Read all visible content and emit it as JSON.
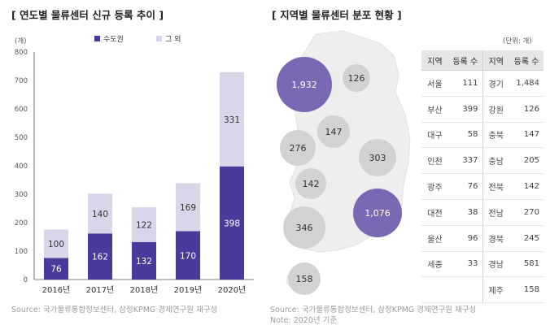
{
  "left_panel": {
    "title": "[ 연도별 물류센터 신규 등록 추이 ]",
    "unit": "(개)",
    "source": "Source: 국가물류통합정보센터, 삼정KPMG 경제연구원 재구성"
  },
  "right_panel": {
    "title": "[ 지역별 물류센터 분포 현황 ]",
    "unit": "(단위: 개)",
    "source": "Source: 국가물류통합정보센터, 삼정KPMG 경제연구원 재구성",
    "note": "Note: 2020년 기준",
    "table": {
      "headers": [
        "지역",
        "등록 수",
        "지역",
        "등록 수"
      ],
      "rows": [
        [
          "서울",
          "111",
          "경기",
          "1,484"
        ],
        [
          "부산",
          "399",
          "강원",
          "126"
        ],
        [
          "대구",
          "58",
          "충북",
          "147"
        ],
        [
          "인천",
          "337",
          "충남",
          "205"
        ],
        [
          "광주",
          "76",
          "전북",
          "142"
        ],
        [
          "대전",
          "38",
          "전남",
          "270"
        ],
        [
          "울산",
          "96",
          "경북",
          "245"
        ],
        [
          "세종",
          "33",
          "경남",
          "581"
        ],
        [
          "",
          "",
          "제주",
          "158"
        ]
      ]
    }
  },
  "colors": {
    "capital": "#4a3a9c",
    "other": "#d9d6e9",
    "bubble_purple": "#7a68b4",
    "bubble_gray": "#d0d0d0",
    "map": "#eeeeee"
  },
  "chart_data": [
    {
      "type": "bar",
      "stacked": true,
      "categories": [
        "2016년",
        "2017년",
        "2018년",
        "2019년",
        "2020년"
      ],
      "series": [
        {
          "name": "수도권",
          "values": [
            76,
            162,
            132,
            170,
            398
          ]
        },
        {
          "name": "그 외",
          "values": [
            100,
            140,
            122,
            169,
            331
          ]
        }
      ],
      "ylabel": "(개)",
      "ylim": [
        0,
        800
      ],
      "yticks": [
        0,
        100,
        200,
        300,
        400,
        500,
        600,
        700,
        800
      ],
      "legend": "top-center",
      "grid": false
    },
    {
      "type": "bubble",
      "bubbles": [
        {
          "label": "1,932",
          "value": 1932,
          "highlight": true
        },
        {
          "label": "126",
          "value": 126,
          "highlight": false
        },
        {
          "label": "147",
          "value": 147,
          "highlight": false
        },
        {
          "label": "276",
          "value": 276,
          "highlight": false
        },
        {
          "label": "303",
          "value": 303,
          "highlight": false
        },
        {
          "label": "142",
          "value": 142,
          "highlight": false
        },
        {
          "label": "1,076",
          "value": 1076,
          "highlight": true
        },
        {
          "label": "346",
          "value": 346,
          "highlight": false
        },
        {
          "label": "158",
          "value": 158,
          "highlight": false
        }
      ]
    }
  ]
}
